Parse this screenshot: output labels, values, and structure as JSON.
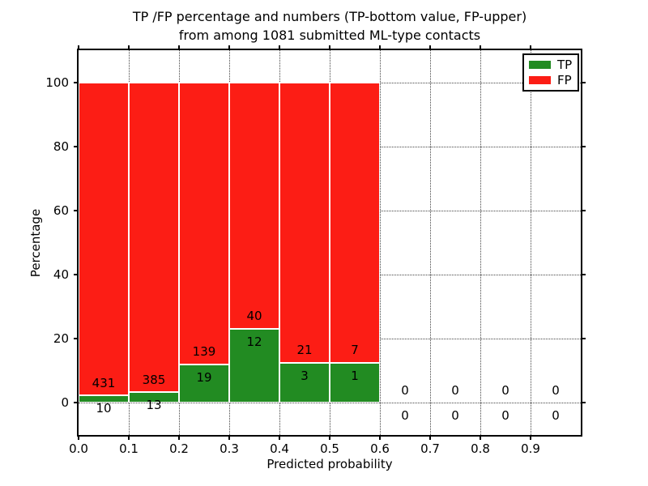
{
  "title": {
    "line1": "TP /FP percentage and numbers (TP-bottom value, FP-upper)",
    "line2": "from among 1081 submitted ML-type contacts"
  },
  "chart_data": {
    "type": "bar",
    "stacked": true,
    "title": "TP /FP percentage and numbers (TP-bottom value, FP-upper)\nfrom among 1081 submitted ML-type contacts",
    "xlabel": "Predicted probability",
    "ylabel": "Percentage",
    "xlim": [
      0.0,
      1.0
    ],
    "ylim": [
      -10,
      110
    ],
    "xticks": [
      0.0,
      0.1,
      0.2,
      0.3,
      0.4,
      0.5,
      0.6,
      0.7,
      0.8,
      0.9
    ],
    "xtick_labels": [
      "0.0",
      "0.1",
      "0.2",
      "0.3",
      "0.4",
      "0.5",
      "0.6",
      "0.7",
      "0.8",
      "0.9"
    ],
    "yticks": [
      0,
      20,
      40,
      60,
      80,
      100
    ],
    "ytick_labels": [
      "0",
      "20",
      "40",
      "60",
      "80",
      "100"
    ],
    "grid": true,
    "grid_style": "dotted",
    "total_contacts": 1081,
    "legend": {
      "position": "upper right",
      "entries": [
        {
          "label": "TP",
          "color": "#228b22"
        },
        {
          "label": "FP",
          "color": "#fc1d15"
        }
      ]
    },
    "series": [
      {
        "name": "TP",
        "color": "#228b22",
        "counts": [
          10,
          13,
          19,
          12,
          3,
          1,
          0,
          0,
          0,
          0
        ]
      },
      {
        "name": "FP",
        "color": "#fc1d15",
        "counts": [
          431,
          385,
          139,
          40,
          21,
          7,
          0,
          0,
          0,
          0
        ]
      }
    ],
    "bins": [
      {
        "x0": 0.0,
        "x1": 0.1,
        "tp_count": 10,
        "fp_count": 431,
        "tp_pct": 2.27,
        "fp_pct": 97.73
      },
      {
        "x0": 0.1,
        "x1": 0.2,
        "tp_count": 13,
        "fp_count": 385,
        "tp_pct": 3.27,
        "fp_pct": 96.73
      },
      {
        "x0": 0.2,
        "x1": 0.3,
        "tp_count": 19,
        "fp_count": 139,
        "tp_pct": 12.03,
        "fp_pct": 87.97
      },
      {
        "x0": 0.3,
        "x1": 0.4,
        "tp_count": 12,
        "fp_count": 40,
        "tp_pct": 23.08,
        "fp_pct": 76.92
      },
      {
        "x0": 0.4,
        "x1": 0.5,
        "tp_count": 3,
        "fp_count": 21,
        "tp_pct": 12.5,
        "fp_pct": 87.5
      },
      {
        "x0": 0.5,
        "x1": 0.6,
        "tp_count": 1,
        "fp_count": 7,
        "tp_pct": 12.5,
        "fp_pct": 87.5
      },
      {
        "x0": 0.6,
        "x1": 0.7,
        "tp_count": 0,
        "fp_count": 0,
        "tp_pct": 0,
        "fp_pct": 0
      },
      {
        "x0": 0.7,
        "x1": 0.8,
        "tp_count": 0,
        "fp_count": 0,
        "tp_pct": 0,
        "fp_pct": 0
      },
      {
        "x0": 0.8,
        "x1": 0.9,
        "tp_count": 0,
        "fp_count": 0,
        "tp_pct": 0,
        "fp_pct": 0
      },
      {
        "x0": 0.9,
        "x1": 1.0,
        "tp_count": 0,
        "fp_count": 0,
        "tp_pct": 0,
        "fp_pct": 0
      }
    ]
  }
}
